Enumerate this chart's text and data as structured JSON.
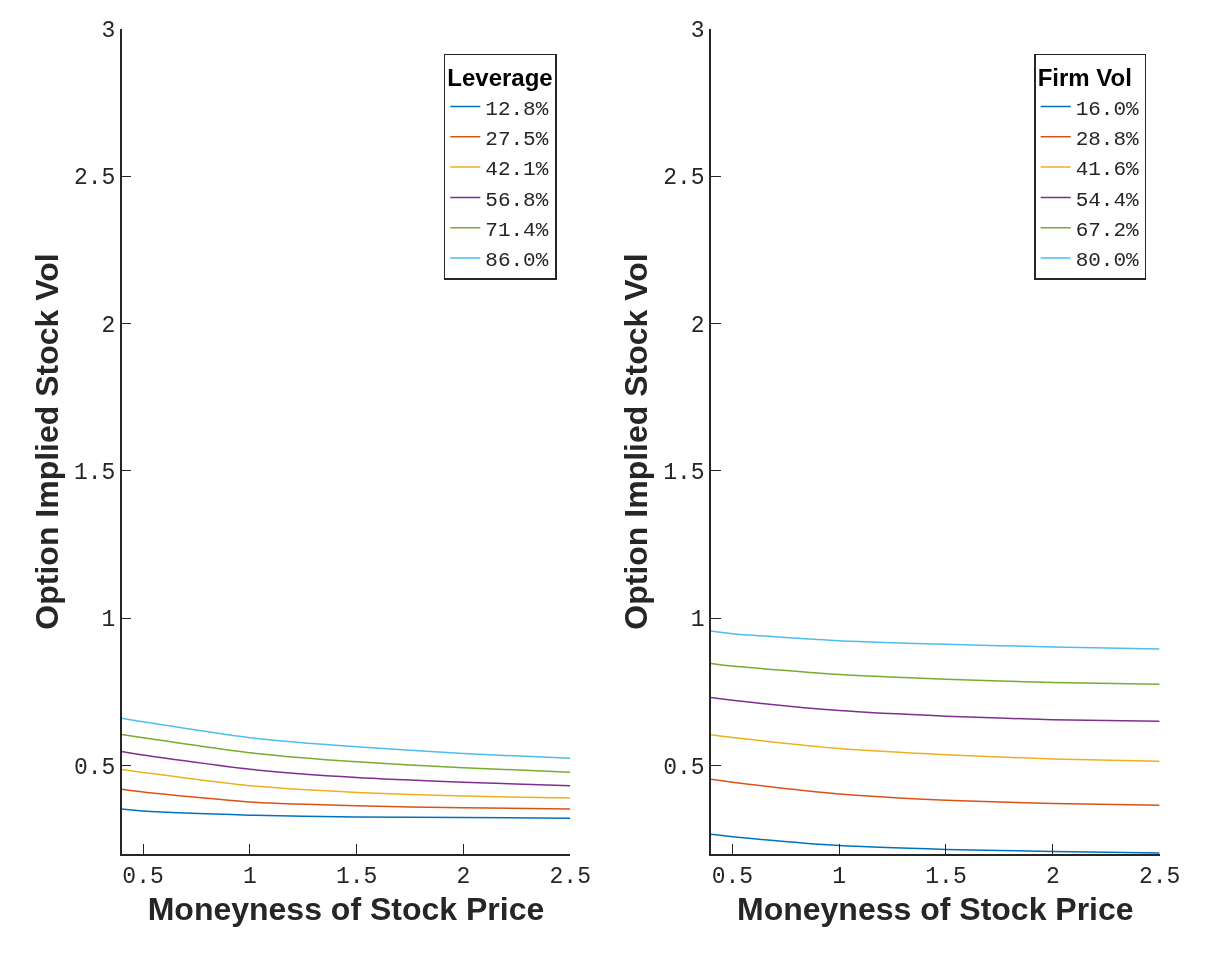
{
  "chart_data": [
    {
      "type": "line",
      "xlabel": "Moneyness of Stock Price",
      "ylabel": "Option Implied Stock Vol",
      "legend_title": "Leverage",
      "legend": "top right",
      "x": [
        0.4,
        0.5,
        1,
        1.5,
        2,
        2.5
      ],
      "xlim": [
        0.4,
        2.5
      ],
      "ylim": [
        0.2,
        3
      ],
      "xticks": [
        0.5,
        1,
        1.5,
        2,
        2.5
      ],
      "yticks": [
        0.5,
        1,
        1.5,
        2,
        2.5,
        3
      ],
      "series": [
        {
          "name": "12.8%",
          "color": "#0072bd",
          "values": [
            0.353,
            0.346,
            0.332,
            0.326,
            0.324,
            0.322
          ]
        },
        {
          "name": "27.5%",
          "color": "#d95319",
          "values": [
            0.42,
            0.411,
            0.377,
            0.364,
            0.357,
            0.353
          ]
        },
        {
          "name": "42.1%",
          "color": "#edb120",
          "values": [
            0.487,
            0.477,
            0.432,
            0.409,
            0.397,
            0.39
          ]
        },
        {
          "name": "56.8%",
          "color": "#7e2f8e",
          "values": [
            0.548,
            0.536,
            0.488,
            0.46,
            0.444,
            0.432
          ]
        },
        {
          "name": "71.4%",
          "color": "#77ac30",
          "values": [
            0.606,
            0.595,
            0.544,
            0.513,
            0.493,
            0.478
          ]
        },
        {
          "name": "86.0%",
          "color": "#4dbeee",
          "values": [
            0.661,
            0.649,
            0.595,
            0.564,
            0.541,
            0.525
          ]
        }
      ]
    },
    {
      "type": "line",
      "xlabel": "Moneyness of Stock Price",
      "ylabel": "Option Implied Stock Vol",
      "legend_title": "Firm Vol",
      "legend": "top right",
      "x": [
        0.4,
        0.5,
        1,
        1.5,
        2,
        2.5
      ],
      "xlim": [
        0.4,
        2.5
      ],
      "ylim": [
        0.2,
        3
      ],
      "xticks": [
        0.5,
        1,
        1.5,
        2,
        2.5
      ],
      "yticks": [
        0.5,
        1,
        1.5,
        2,
        2.5,
        3
      ],
      "series": [
        {
          "name": "16.0%",
          "color": "#0072bd",
          "values": [
            0.267,
            0.259,
            0.229,
            0.216,
            0.209,
            0.204
          ]
        },
        {
          "name": "28.8%",
          "color": "#d95319",
          "values": [
            0.454,
            0.444,
            0.404,
            0.383,
            0.372,
            0.366
          ]
        },
        {
          "name": "41.6%",
          "color": "#edb120",
          "values": [
            0.605,
            0.596,
            0.558,
            0.537,
            0.523,
            0.515
          ]
        },
        {
          "name": "54.4%",
          "color": "#7e2f8e",
          "values": [
            0.731,
            0.722,
            0.687,
            0.668,
            0.656,
            0.651
          ]
        },
        {
          "name": "67.2%",
          "color": "#77ac30",
          "values": [
            0.847,
            0.838,
            0.809,
            0.793,
            0.782,
            0.776
          ]
        },
        {
          "name": "80.0%",
          "color": "#4dbeee",
          "values": [
            0.957,
            0.948,
            0.924,
            0.912,
            0.903,
            0.896
          ]
        }
      ]
    }
  ]
}
